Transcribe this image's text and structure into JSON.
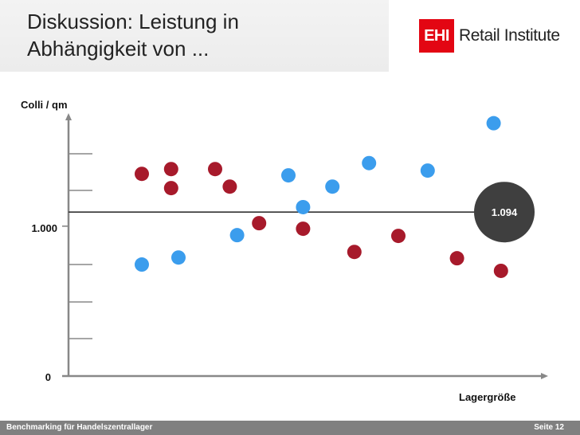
{
  "header": {
    "title": "Diskussion: Leistung in Abhängigkeit von ...",
    "logo_mark": "EHI",
    "logo_text": "Retail Institute",
    "logo_color": "#e30613"
  },
  "footer": {
    "left": "Benchmarking für Handelszentrallager",
    "right": "Seite 12"
  },
  "chart_data": {
    "type": "scatter",
    "title": "",
    "xlabel": "Lagergröße",
    "ylabel": "Colli / qm",
    "ylim": [
      0,
      1733
    ],
    "y_ticks": [
      {
        "value": 0,
        "label": "0"
      },
      {
        "value": 1000,
        "label": "1.000"
      }
    ],
    "reference_line": {
      "value": 1094,
      "label": "1.094",
      "color": "#3f3f3f"
    },
    "grid": false,
    "legend": "none",
    "series": [
      {
        "color": "#a71a2b",
        "points": [
          {
            "x": 1.0,
            "y": 1349
          },
          {
            "x": 1.4,
            "y": 1381
          },
          {
            "x": 1.4,
            "y": 1254
          },
          {
            "x": 2.0,
            "y": 1381
          },
          {
            "x": 2.2,
            "y": 1264
          },
          {
            "x": 2.6,
            "y": 1020
          },
          {
            "x": 3.2,
            "y": 983
          },
          {
            "x": 3.9,
            "y": 828
          },
          {
            "x": 4.5,
            "y": 935
          },
          {
            "x": 5.3,
            "y": 786
          },
          {
            "x": 5.9,
            "y": 702
          }
        ]
      },
      {
        "color": "#3b9ded",
        "points": [
          {
            "x": 1.0,
            "y": 744
          },
          {
            "x": 1.5,
            "y": 791
          },
          {
            "x": 2.3,
            "y": 940
          },
          {
            "x": 3.0,
            "y": 1339
          },
          {
            "x": 3.2,
            "y": 1127
          },
          {
            "x": 3.6,
            "y": 1264
          },
          {
            "x": 4.1,
            "y": 1421
          },
          {
            "x": 4.9,
            "y": 1371
          },
          {
            "x": 5.8,
            "y": 1687
          }
        ]
      }
    ]
  }
}
